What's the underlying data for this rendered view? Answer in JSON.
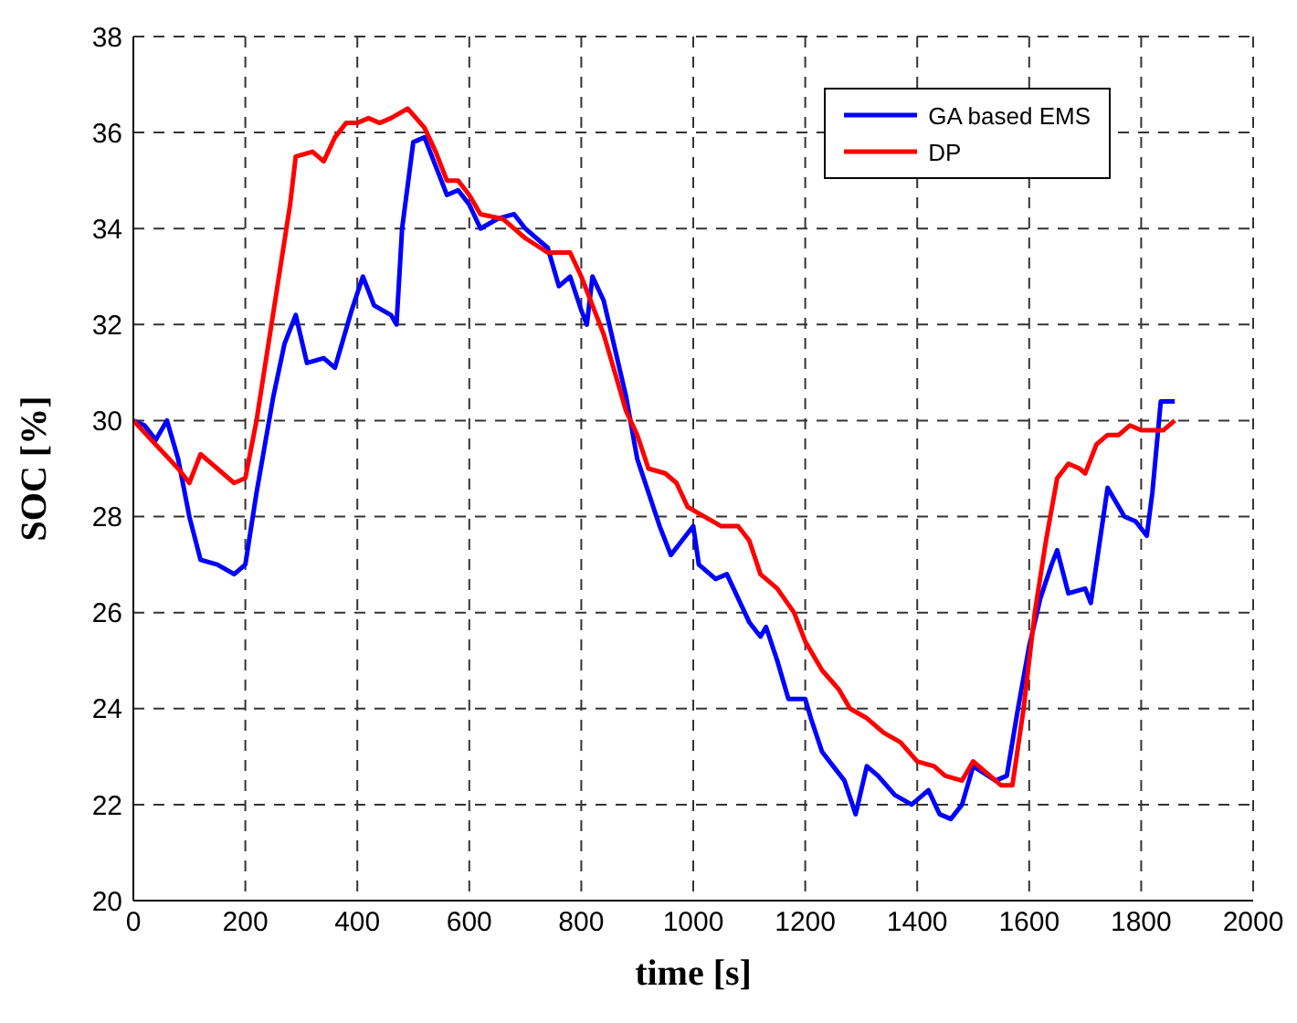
{
  "chart_data": {
    "type": "line",
    "xlabel": "time [s]",
    "ylabel": "SOC [%]",
    "xlim": [
      0,
      2000
    ],
    "xticks": [
      0,
      200,
      400,
      600,
      800,
      1000,
      1200,
      1400,
      1600,
      1800,
      2000
    ],
    "ylim": [
      20,
      38
    ],
    "yticks": [
      20,
      22,
      24,
      26,
      28,
      30,
      32,
      34,
      36,
      38
    ],
    "grid": true,
    "legend": "top right",
    "line_style": "solid",
    "series": [
      {
        "name": "GA based EMS",
        "color": "#0000ff",
        "x": [
          0,
          20,
          40,
          60,
          80,
          100,
          120,
          150,
          180,
          200,
          220,
          250,
          270,
          290,
          310,
          340,
          360,
          370,
          390,
          410,
          430,
          460,
          470,
          480,
          500,
          520,
          540,
          560,
          580,
          600,
          620,
          650,
          680,
          700,
          740,
          760,
          780,
          800,
          810,
          820,
          840,
          860,
          880,
          900,
          920,
          940,
          960,
          980,
          1000,
          1010,
          1040,
          1060,
          1080,
          1100,
          1120,
          1130,
          1150,
          1170,
          1200,
          1210,
          1230,
          1250,
          1270,
          1290,
          1310,
          1330,
          1360,
          1390,
          1420,
          1440,
          1460,
          1480,
          1500,
          1540,
          1560,
          1580,
          1600,
          1620,
          1640,
          1650,
          1670,
          1700,
          1710,
          1740,
          1770,
          1790,
          1810,
          1820,
          1835,
          1860
        ],
        "values": [
          30,
          29.9,
          29.6,
          30.0,
          29.2,
          28.0,
          27.1,
          27.0,
          26.8,
          27.0,
          28.5,
          30.5,
          31.6,
          32.2,
          31.2,
          31.3,
          31.1,
          31.5,
          32.3,
          33.0,
          32.4,
          32.2,
          32.0,
          34.0,
          35.8,
          35.9,
          35.3,
          34.7,
          34.8,
          34.5,
          34.0,
          34.2,
          34.3,
          34.0,
          33.6,
          32.8,
          33.0,
          32.3,
          32.0,
          33.0,
          32.5,
          31.5,
          30.5,
          29.2,
          28.5,
          27.8,
          27.2,
          27.5,
          27.8,
          27.0,
          26.7,
          26.8,
          26.3,
          25.8,
          25.5,
          25.7,
          25.0,
          24.2,
          24.2,
          23.8,
          23.1,
          22.8,
          22.5,
          21.8,
          22.8,
          22.6,
          22.2,
          22.0,
          22.3,
          21.8,
          21.7,
          22.0,
          22.8,
          22.5,
          22.6,
          24.0,
          25.3,
          26.3,
          27.0,
          27.3,
          26.4,
          26.5,
          26.2,
          28.6,
          28.0,
          27.9,
          27.6,
          28.5,
          30.4,
          30.4
        ]
      },
      {
        "name": "DP",
        "color": "#ff0000",
        "x": [
          0,
          40,
          80,
          100,
          120,
          150,
          180,
          200,
          220,
          240,
          260,
          280,
          290,
          320,
          340,
          360,
          380,
          400,
          420,
          440,
          460,
          490,
          520,
          540,
          560,
          580,
          600,
          620,
          660,
          700,
          740,
          780,
          800,
          820,
          840,
          860,
          880,
          900,
          920,
          950,
          970,
          990,
          1020,
          1050,
          1080,
          1100,
          1120,
          1150,
          1180,
          1200,
          1230,
          1260,
          1280,
          1310,
          1340,
          1370,
          1400,
          1430,
          1450,
          1480,
          1500,
          1530,
          1550,
          1570,
          1590,
          1610,
          1630,
          1650,
          1670,
          1690,
          1700,
          1720,
          1740,
          1760,
          1780,
          1800,
          1820,
          1840,
          1860
        ],
        "values": [
          30,
          29.5,
          29.0,
          28.7,
          29.3,
          29.0,
          28.7,
          28.8,
          30.0,
          31.5,
          33.0,
          34.5,
          35.5,
          35.6,
          35.4,
          35.9,
          36.2,
          36.2,
          36.3,
          36.2,
          36.3,
          36.5,
          36.1,
          35.6,
          35.0,
          35.0,
          34.7,
          34.3,
          34.2,
          33.8,
          33.5,
          33.5,
          33.0,
          32.4,
          31.8,
          31.0,
          30.2,
          29.7,
          29.0,
          28.9,
          28.7,
          28.2,
          28.0,
          27.8,
          27.8,
          27.5,
          26.8,
          26.5,
          26.0,
          25.4,
          24.8,
          24.4,
          24.0,
          23.8,
          23.5,
          23.3,
          22.9,
          22.8,
          22.6,
          22.5,
          22.9,
          22.6,
          22.4,
          22.4,
          24.0,
          26.0,
          27.5,
          28.8,
          29.1,
          29.0,
          28.9,
          29.5,
          29.7,
          29.7,
          29.9,
          29.8,
          29.8,
          29.8,
          30.0
        ]
      }
    ]
  }
}
